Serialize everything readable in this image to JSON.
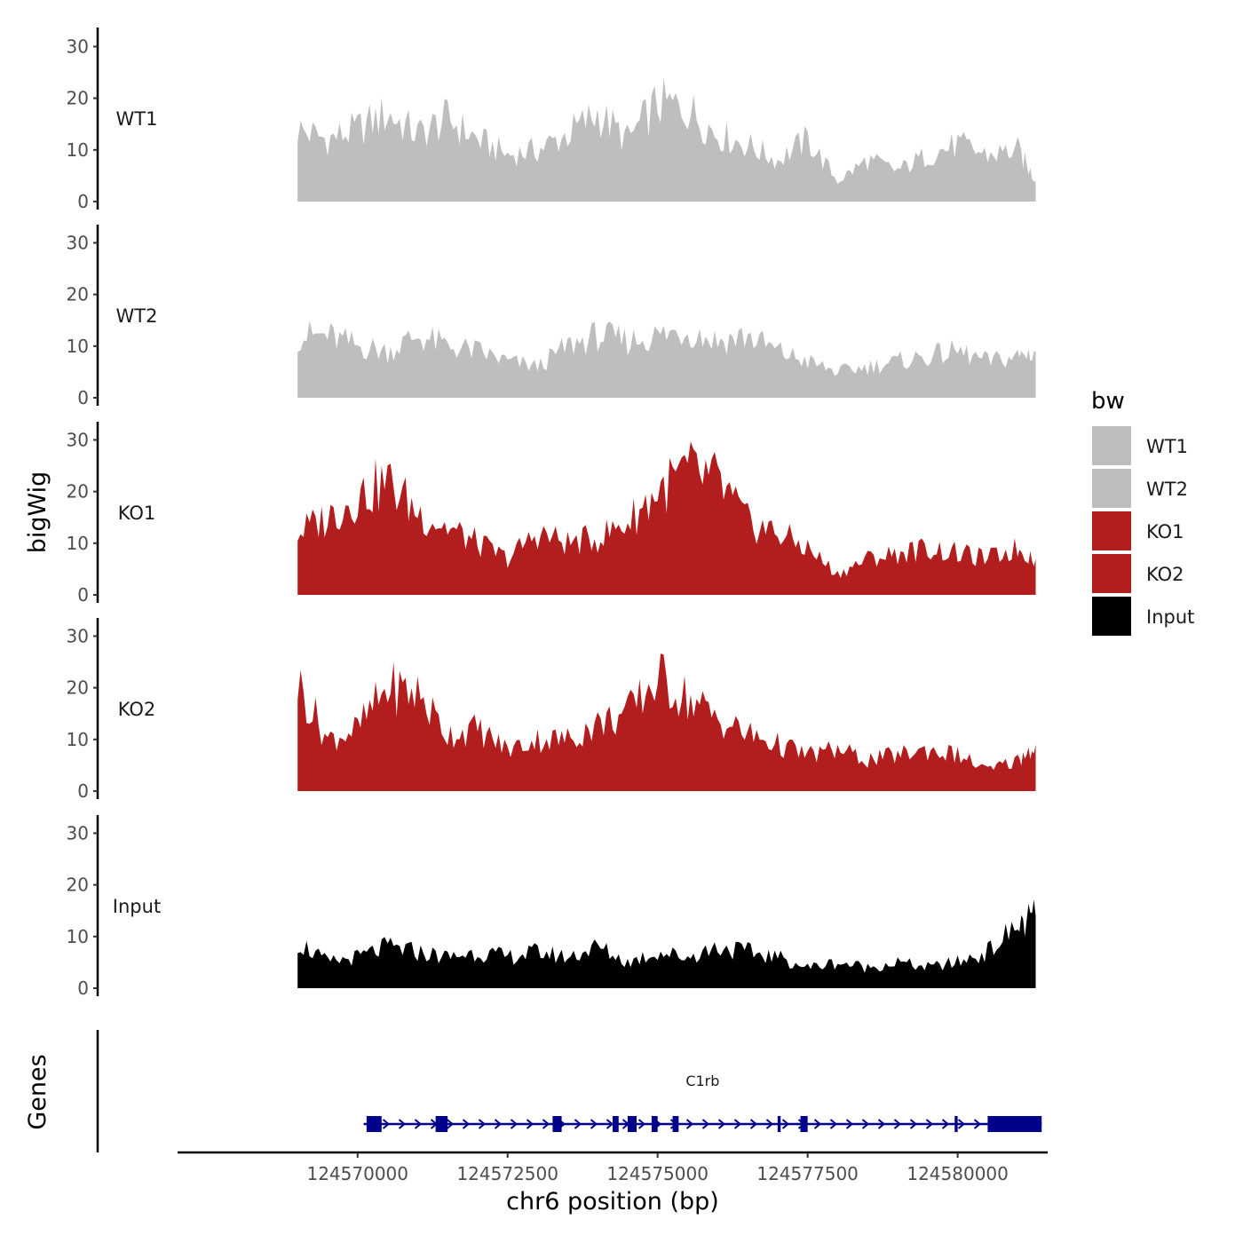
{
  "chart_data": {
    "type": "area",
    "title": "",
    "ylabel": "bigWig",
    "xlabel": "chr6 position (bp)",
    "ylim": [
      0,
      33
    ],
    "yticks": [
      0,
      10,
      20,
      30
    ],
    "xlim": [
      124567000,
      124581500
    ],
    "xticks": [
      124570000,
      124572500,
      124575000,
      124577500,
      124580000
    ],
    "colors": {
      "WT1": "#bebebe",
      "WT2": "#bebebe",
      "KO1": "#b21e1e",
      "KO2": "#b21e1e",
      "Input": "#000000",
      "gene": "#00008b",
      "axis": "#000000"
    },
    "x": [
      124569000,
      124569500,
      124570000,
      124570500,
      124571000,
      124571500,
      124572000,
      124572500,
      124573000,
      124573500,
      124574000,
      124574500,
      124575000,
      124575500,
      124576000,
      124576500,
      124577000,
      124577500,
      124578000,
      124578500,
      124579000,
      124579500,
      124580000,
      124580500,
      124581000,
      124581300
    ],
    "series": [
      {
        "name": "WT1",
        "values": [
          14,
          12,
          14,
          17,
          13,
          16,
          12,
          9,
          10,
          13,
          17,
          12,
          19,
          18,
          13,
          11,
          8,
          12,
          4,
          8,
          6,
          9,
          11,
          9,
          10,
          4
        ]
      },
      {
        "name": "WT2",
        "values": [
          12,
          12,
          10,
          9,
          12,
          10,
          9,
          7,
          6,
          10,
          12,
          11,
          12,
          13,
          11,
          12,
          9,
          7,
          5,
          6,
          7,
          8,
          9,
          7,
          8,
          9
        ]
      },
      {
        "name": "KO1",
        "values": [
          12,
          15,
          19,
          22,
          16,
          13,
          10,
          7,
          12,
          10,
          11,
          14,
          20,
          24,
          22,
          14,
          12,
          9,
          4,
          7,
          8,
          9,
          8,
          7,
          9,
          7
        ]
      },
      {
        "name": "KO2",
        "values": [
          21,
          10,
          12,
          20,
          19,
          11,
          12,
          8,
          10,
          10,
          13,
          15,
          22,
          18,
          14,
          11,
          9,
          7,
          8,
          6,
          7,
          8,
          7,
          4,
          6,
          9
        ]
      },
      {
        "name": "Input",
        "values": [
          9,
          5,
          6,
          8,
          7,
          6,
          7,
          6,
          7,
          6,
          8,
          5,
          7,
          6,
          8,
          7,
          6,
          4,
          5,
          4,
          5,
          4,
          5,
          7,
          12,
          14
        ]
      }
    ],
    "legend": {
      "title": "bw",
      "position": "right",
      "entries": [
        "WT1",
        "WT2",
        "KO1",
        "KO2",
        "Input"
      ]
    },
    "genes_panel": {
      "ylabel": "Genes",
      "gene_name": "C1rb",
      "start": 124570100,
      "end": 124581400,
      "exons": [
        [
          124570150,
          124570400
        ],
        [
          124571300,
          124571500
        ],
        [
          124573250,
          124573400
        ],
        [
          124574250,
          124574350
        ],
        [
          124574500,
          124574650
        ],
        [
          124574900,
          124575000
        ],
        [
          124575250,
          124575350
        ],
        [
          124577000,
          124577050
        ],
        [
          124577380,
          124577500
        ],
        [
          124579950,
          124580000
        ],
        [
          124580500,
          124581400
        ]
      ]
    }
  }
}
